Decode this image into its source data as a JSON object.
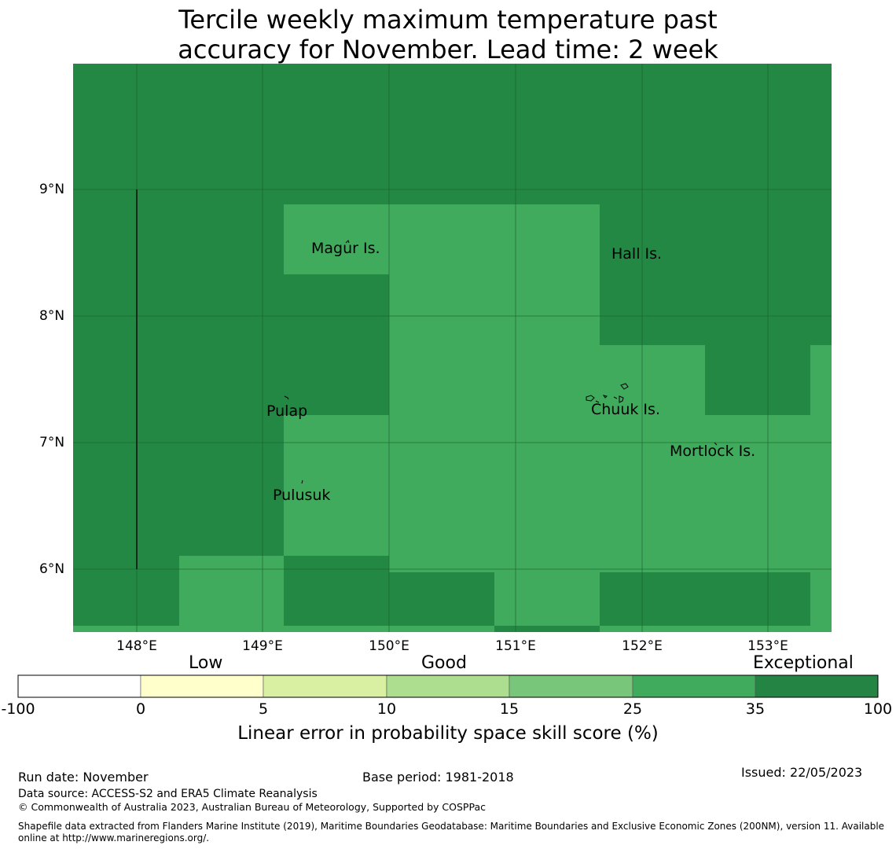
{
  "title": {
    "line1": "Tercile weekly maximum temperature past",
    "line2": "accuracy for November. Lead time: 2 week"
  },
  "map": {
    "lat_labels": [
      "9°N",
      "8°N",
      "7°N",
      "6°N"
    ],
    "lon_labels": [
      "148°E",
      "149°E",
      "150°E",
      "151°E",
      "152°E",
      "153°E"
    ],
    "places": {
      "magur": "Magur Is.",
      "hall": "Hall Is.",
      "pulap": "Pulap",
      "chuuk": "Chuuk Is.",
      "mortlock": "Mortlock Is.",
      "pulusuk": "Pulusuk"
    },
    "colors": {
      "exceptional": "#238843",
      "good_high": "#40ab5d",
      "gridline": "#1a5e2d"
    }
  },
  "colorbar": {
    "categories": {
      "low": "Low",
      "good": "Good",
      "exceptional": "Exceptional"
    },
    "ticks": [
      "-100",
      "0",
      "5",
      "10",
      "15",
      "25",
      "35",
      "100"
    ],
    "colors": [
      "#ffffff",
      "#ffffcc",
      "#d9f0a3",
      "#addd8e",
      "#78c679",
      "#41ab5d",
      "#238443"
    ],
    "label": "Linear error in probability space skill score (%)"
  },
  "footer": {
    "run_date": "Run date: November",
    "base_period": "Base period: 1981-2018",
    "issued": "Issued: 22/05/2023",
    "data_source": "Data source: ACCESS-S2 and ERA5 Climate Reanalysis",
    "copyright": "© Commonwealth of Australia 2023, Australian Bureau of Meteorology, Supported by COSPPac",
    "shapefile_line1": "Shapefile data extracted from Flanders Marine Institute (2019), Maritime Boundaries Geodatabase: Maritime Boundaries and Exclusive Economic Zones (200NM), version 11. Available",
    "shapefile_line2": "online at http://www.marineregions.org/."
  }
}
